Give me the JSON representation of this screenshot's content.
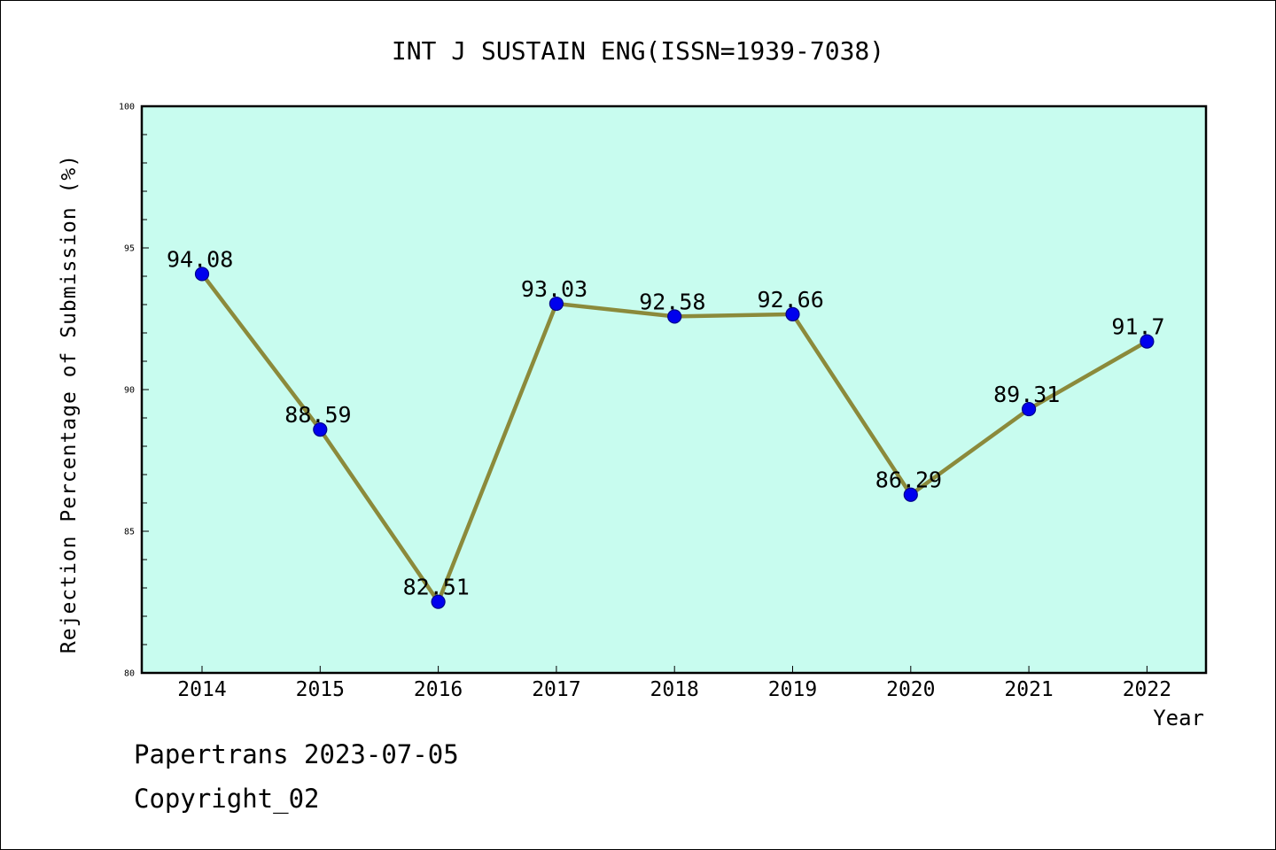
{
  "chart_data": {
    "type": "line",
    "title": "INT J SUSTAIN ENG(ISSN=1939-7038)",
    "xlabel": "Year",
    "ylabel": "Rejection Percentage of Submission (%)",
    "categories": [
      "2014",
      "2015",
      "2016",
      "2017",
      "2018",
      "2019",
      "2020",
      "2021",
      "2022"
    ],
    "series": [
      {
        "values": [
          94.08,
          88.59,
          82.51,
          93.03,
          92.58,
          92.66,
          86.29,
          89.31,
          91.7
        ],
        "labels": [
          "94.08",
          "88.59",
          "82.51",
          "93.03",
          "92.58",
          "92.66",
          "86.29",
          "89.31",
          "91.7"
        ]
      }
    ],
    "ylim": [
      80,
      100
    ],
    "yticks": [
      80,
      85,
      90,
      95,
      100
    ],
    "grid": false,
    "colors": {
      "plot_background": "#c8fcef",
      "line": "#8b8a3b",
      "marker": "#0000ee",
      "marker_edge": "#00008b"
    }
  },
  "footer": {
    "line1": "Papertrans 2023-07-05",
    "line2": "Copyright_02"
  }
}
